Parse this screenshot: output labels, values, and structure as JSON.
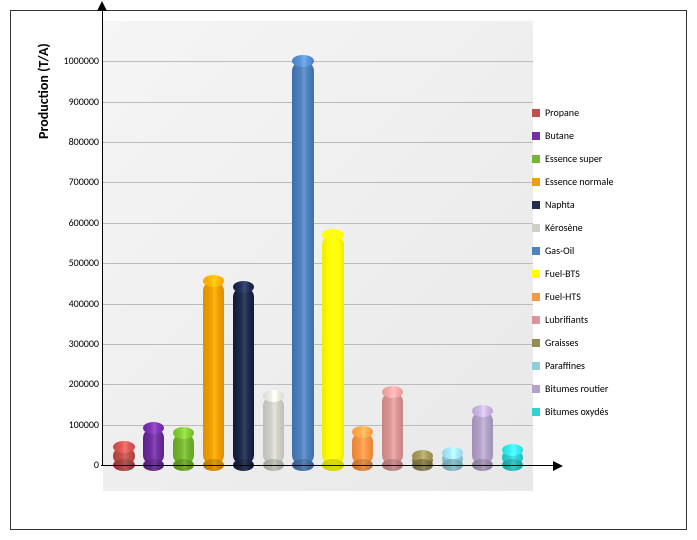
{
  "chart": {
    "type": "bar",
    "y_axis_label": "Production (T/A)",
    "y_axis_label_fontsize": 14,
    "legend_font_size": 10,
    "tick_font_size": 10,
    "max_value": 1100000,
    "ylim": [
      0,
      1100000
    ],
    "ytick_step": 100000,
    "ticks": [
      "0",
      "100000",
      "200000",
      "300000",
      "400000",
      "500000",
      "600000",
      "700000",
      "800000",
      "900000",
      "1000000"
    ],
    "plot_background": "#f0f0f0",
    "grid_color": "#bbbbbb",
    "border_color": "#333333",
    "axis_color": "#000000",
    "bar_style": "cylinder",
    "series": [
      {
        "label": "Propane",
        "value": 45000,
        "color": "#c0504d"
      },
      {
        "label": "Butane",
        "value": 92000,
        "color": "#7030a0"
      },
      {
        "label": "Essence super",
        "value": 80000,
        "color": "#76b531"
      },
      {
        "label": "Essence normale",
        "value": 455000,
        "color": "#f0a000"
      },
      {
        "label": "Naphta",
        "value": 440000,
        "color": "#1f2c4e"
      },
      {
        "label": "Kérosène",
        "value": 170000,
        "color": "#d0cfc8"
      },
      {
        "label": "Gas-Oil",
        "value": 1000000,
        "color": "#4f81bd"
      },
      {
        "label": "Fuel-BTS",
        "value": 570000,
        "color": "#ffff00"
      },
      {
        "label": "Fuel-HTS",
        "value": 82000,
        "color": "#f79646"
      },
      {
        "label": "Lubrifiants",
        "value": 180000,
        "color": "#d99694"
      },
      {
        "label": "Graisses",
        "value": 22000,
        "color": "#948a54"
      },
      {
        "label": "Paraffines",
        "value": 30000,
        "color": "#93cddd"
      },
      {
        "label": "Bitumes routier",
        "value": 135000,
        "color": "#b3a2c7"
      },
      {
        "label": "Bitumes oxydés",
        "value": 38000,
        "color": "#31d1d4"
      }
    ]
  }
}
